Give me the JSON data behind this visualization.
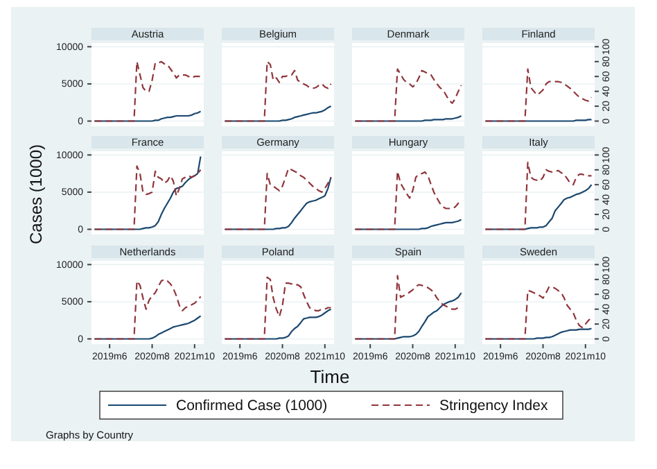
{
  "chart_data": [
    {
      "type": "line",
      "title": "Austria",
      "grid": "y",
      "tick_labels": "y",
      "x": [
        "2019-01",
        "2019-02",
        "2019-03",
        "2019-04",
        "2019-05",
        "2019-06",
        "2019-07",
        "2019-08",
        "2019-09",
        "2019-10",
        "2019-11",
        "2019-12",
        "2020-01",
        "2020-02",
        "2020-03",
        "2020-04",
        "2020-05",
        "2020-06",
        "2020-07",
        "2020-08",
        "2020-09",
        "2020-10",
        "2020-11",
        "2020-12",
        "2021-01",
        "2021-02",
        "2021-03",
        "2021-04",
        "2021-05",
        "2021-06",
        "2021-07",
        "2021-08",
        "2021-09",
        "2021-10",
        "2021-11",
        "2021-12"
      ],
      "xlim": [
        "2018-12",
        "2022-01"
      ],
      "ylim": [
        -700,
        10500
      ],
      "yticks": [
        0,
        5000,
        10000
      ],
      "y2lim": [
        -7,
        105
      ],
      "series": [
        {
          "color": "#1a476f",
          "line_style": "solid",
          "values": [
            0,
            0,
            0,
            0,
            0,
            0,
            0,
            0,
            0,
            0,
            0,
            0,
            0,
            0,
            0,
            0,
            0,
            0,
            0,
            0,
            100,
            100,
            300,
            400,
            500,
            500,
            600,
            700,
            700,
            700,
            700,
            700,
            800,
            1000,
            1100,
            1300
          ]
        },
        {
          "color": "#90353b",
          "line_style": "dashed",
          "axis": "y2",
          "values": [
            0,
            0,
            0,
            0,
            0,
            0,
            0,
            0,
            0,
            0,
            0,
            0,
            0,
            0,
            80,
            62,
            45,
            40,
            40,
            55,
            78,
            78,
            80,
            77,
            76,
            70,
            65,
            58,
            62,
            62,
            62,
            60,
            58,
            60,
            60,
            60
          ]
        }
      ]
    },
    {
      "type": "line",
      "title": "Belgium",
      "grid": "y",
      "tick_labels": false,
      "x": [
        "2019-01",
        "2019-02",
        "2019-03",
        "2019-04",
        "2019-05",
        "2019-06",
        "2019-07",
        "2019-08",
        "2019-09",
        "2019-10",
        "2019-11",
        "2019-12",
        "2020-01",
        "2020-02",
        "2020-03",
        "2020-04",
        "2020-05",
        "2020-06",
        "2020-07",
        "2020-08",
        "2020-09",
        "2020-10",
        "2020-11",
        "2020-12",
        "2021-01",
        "2021-02",
        "2021-03",
        "2021-04",
        "2021-05",
        "2021-06",
        "2021-07",
        "2021-08",
        "2021-09",
        "2021-10",
        "2021-11",
        "2021-12"
      ],
      "xlim": [
        "2018-12",
        "2022-01"
      ],
      "ylim": [
        -700,
        10500
      ],
      "y2lim": [
        -7,
        105
      ],
      "series": [
        {
          "color": "#1a476f",
          "line_style": "solid",
          "values": [
            0,
            0,
            0,
            0,
            0,
            0,
            0,
            0,
            0,
            0,
            0,
            0,
            0,
            0,
            0,
            0,
            0,
            0,
            0,
            100,
            100,
            200,
            300,
            500,
            600,
            700,
            800,
            900,
            1000,
            1100,
            1100,
            1200,
            1300,
            1500,
            1800,
            2000
          ]
        },
        {
          "color": "#90353b",
          "line_style": "dashed",
          "axis": "y2",
          "values": [
            0,
            0,
            0,
            0,
            0,
            0,
            0,
            0,
            0,
            0,
            0,
            0,
            0,
            0,
            80,
            76,
            55,
            58,
            52,
            60,
            60,
            62,
            62,
            68,
            55,
            52,
            50,
            48,
            45,
            44,
            45,
            48,
            50,
            46,
            44,
            50
          ]
        }
      ]
    },
    {
      "type": "line",
      "title": "Denmark",
      "grid": "y",
      "tick_labels": false,
      "x": [
        "2019-01",
        "2019-02",
        "2019-03",
        "2019-04",
        "2019-05",
        "2019-06",
        "2019-07",
        "2019-08",
        "2019-09",
        "2019-10",
        "2019-11",
        "2019-12",
        "2020-01",
        "2020-02",
        "2020-03",
        "2020-04",
        "2020-05",
        "2020-06",
        "2020-07",
        "2020-08",
        "2020-09",
        "2020-10",
        "2020-11",
        "2020-12",
        "2021-01",
        "2021-02",
        "2021-03",
        "2021-04",
        "2021-05",
        "2021-06",
        "2021-07",
        "2021-08",
        "2021-09",
        "2021-10",
        "2021-11",
        "2021-12"
      ],
      "xlim": [
        "2018-12",
        "2022-01"
      ],
      "ylim": [
        -700,
        10500
      ],
      "y2lim": [
        -7,
        105
      ],
      "series": [
        {
          "color": "#1a476f",
          "line_style": "solid",
          "values": [
            0,
            0,
            0,
            0,
            0,
            0,
            0,
            0,
            0,
            0,
            0,
            0,
            0,
            0,
            0,
            0,
            0,
            0,
            0,
            0,
            0,
            0,
            0,
            100,
            100,
            100,
            200,
            200,
            200,
            200,
            300,
            300,
            300,
            400,
            500,
            700
          ]
        },
        {
          "color": "#90353b",
          "line_style": "dashed",
          "axis": "y2",
          "values": [
            0,
            0,
            0,
            0,
            0,
            0,
            0,
            0,
            0,
            0,
            0,
            0,
            0,
            0,
            70,
            63,
            56,
            52,
            50,
            46,
            50,
            58,
            68,
            66,
            64,
            62,
            56,
            50,
            45,
            42,
            35,
            28,
            24,
            30,
            40,
            48
          ]
        }
      ]
    },
    {
      "type": "line",
      "title": "Finland",
      "grid": "y",
      "tick_labels": "y2",
      "x": [
        "2019-01",
        "2019-02",
        "2019-03",
        "2019-04",
        "2019-05",
        "2019-06",
        "2019-07",
        "2019-08",
        "2019-09",
        "2019-10",
        "2019-11",
        "2019-12",
        "2020-01",
        "2020-02",
        "2020-03",
        "2020-04",
        "2020-05",
        "2020-06",
        "2020-07",
        "2020-08",
        "2020-09",
        "2020-10",
        "2020-11",
        "2020-12",
        "2021-01",
        "2021-02",
        "2021-03",
        "2021-04",
        "2021-05",
        "2021-06",
        "2021-07",
        "2021-08",
        "2021-09",
        "2021-10",
        "2021-11",
        "2021-12"
      ],
      "xlim": [
        "2018-12",
        "2022-01"
      ],
      "ylim": [
        -700,
        10500
      ],
      "y2lim": [
        -7,
        105
      ],
      "y2ticks": [
        0,
        20,
        40,
        60,
        80,
        100
      ],
      "series": [
        {
          "color": "#1a476f",
          "line_style": "solid",
          "values": [
            0,
            0,
            0,
            0,
            0,
            0,
            0,
            0,
            0,
            0,
            0,
            0,
            0,
            0,
            0,
            0,
            0,
            0,
            0,
            0,
            0,
            0,
            0,
            0,
            0,
            0,
            0,
            0,
            0,
            0,
            100,
            100,
            100,
            100,
            200,
            200
          ]
        },
        {
          "color": "#90353b",
          "line_style": "dashed",
          "axis": "y2",
          "values": [
            0,
            0,
            0,
            0,
            0,
            0,
            0,
            0,
            0,
            0,
            0,
            0,
            0,
            0,
            70,
            45,
            40,
            35,
            38,
            42,
            50,
            53,
            53,
            53,
            53,
            52,
            50,
            47,
            44,
            40,
            36,
            32,
            30,
            28,
            27,
            32
          ]
        }
      ]
    },
    {
      "type": "line",
      "title": "France",
      "ylabel": "Cases (1000)",
      "grid": "y",
      "tick_labels": "y",
      "x": [
        "2019-01",
        "2019-02",
        "2019-03",
        "2019-04",
        "2019-05",
        "2019-06",
        "2019-07",
        "2019-08",
        "2019-09",
        "2019-10",
        "2019-11",
        "2019-12",
        "2020-01",
        "2020-02",
        "2020-03",
        "2020-04",
        "2020-05",
        "2020-06",
        "2020-07",
        "2020-08",
        "2020-09",
        "2020-10",
        "2020-11",
        "2020-12",
        "2021-01",
        "2021-02",
        "2021-03",
        "2021-04",
        "2021-05",
        "2021-06",
        "2021-07",
        "2021-08",
        "2021-09",
        "2021-10",
        "2021-11",
        "2021-12"
      ],
      "xlim": [
        "2018-12",
        "2022-01"
      ],
      "ylim": [
        -700,
        10500
      ],
      "yticks": [
        0,
        5000,
        10000
      ],
      "y2lim": [
        -7,
        105
      ],
      "series": [
        {
          "color": "#1a476f",
          "line_style": "solid",
          "values": [
            0,
            0,
            0,
            0,
            0,
            0,
            0,
            0,
            0,
            0,
            0,
            0,
            0,
            0,
            0,
            0,
            100,
            200,
            200,
            300,
            500,
            1000,
            2000,
            2800,
            3500,
            4200,
            5000,
            5500,
            5600,
            5800,
            6300,
            6700,
            7000,
            7200,
            7500,
            9800
          ]
        },
        {
          "color": "#90353b",
          "line_style": "dashed",
          "axis": "y2",
          "values": [
            0,
            0,
            0,
            0,
            0,
            0,
            0,
            0,
            0,
            0,
            0,
            0,
            0,
            0,
            85,
            75,
            50,
            47,
            48,
            50,
            78,
            70,
            68,
            62,
            65,
            72,
            65,
            45,
            55,
            68,
            70,
            72,
            70,
            72,
            75,
            80
          ]
        }
      ]
    },
    {
      "type": "line",
      "title": "Germany",
      "grid": "y",
      "tick_labels": false,
      "x": [
        "2019-01",
        "2019-02",
        "2019-03",
        "2019-04",
        "2019-05",
        "2019-06",
        "2019-07",
        "2019-08",
        "2019-09",
        "2019-10",
        "2019-11",
        "2019-12",
        "2020-01",
        "2020-02",
        "2020-03",
        "2020-04",
        "2020-05",
        "2020-06",
        "2020-07",
        "2020-08",
        "2020-09",
        "2020-10",
        "2020-11",
        "2020-12",
        "2021-01",
        "2021-02",
        "2021-03",
        "2021-04",
        "2021-05",
        "2021-06",
        "2021-07",
        "2021-08",
        "2021-09",
        "2021-10",
        "2021-11",
        "2021-12"
      ],
      "xlim": [
        "2018-12",
        "2022-01"
      ],
      "ylim": [
        -700,
        10500
      ],
      "y2lim": [
        -7,
        105
      ],
      "series": [
        {
          "color": "#1a476f",
          "line_style": "solid",
          "values": [
            0,
            0,
            0,
            0,
            0,
            0,
            0,
            0,
            0,
            0,
            0,
            0,
            0,
            0,
            0,
            0,
            0,
            100,
            100,
            200,
            200,
            400,
            900,
            1500,
            2000,
            2500,
            3000,
            3500,
            3700,
            3800,
            3900,
            4100,
            4300,
            4500,
            5500,
            7000
          ]
        },
        {
          "color": "#90353b",
          "line_style": "dashed",
          "axis": "y2",
          "values": [
            0,
            0,
            0,
            0,
            0,
            0,
            0,
            0,
            0,
            0,
            0,
            0,
            0,
            0,
            75,
            60,
            58,
            55,
            52,
            58,
            70,
            82,
            80,
            78,
            76,
            72,
            70,
            66,
            62,
            58,
            55,
            52,
            50,
            55,
            62,
            70
          ]
        }
      ]
    },
    {
      "type": "line",
      "title": "Hungary",
      "grid": "y",
      "tick_labels": false,
      "x": [
        "2019-01",
        "2019-02",
        "2019-03",
        "2019-04",
        "2019-05",
        "2019-06",
        "2019-07",
        "2019-08",
        "2019-09",
        "2019-10",
        "2019-11",
        "2019-12",
        "2020-01",
        "2020-02",
        "2020-03",
        "2020-04",
        "2020-05",
        "2020-06",
        "2020-07",
        "2020-08",
        "2020-09",
        "2020-10",
        "2020-11",
        "2020-12",
        "2021-01",
        "2021-02",
        "2021-03",
        "2021-04",
        "2021-05",
        "2021-06",
        "2021-07",
        "2021-08",
        "2021-09",
        "2021-10",
        "2021-11",
        "2021-12"
      ],
      "xlim": [
        "2018-12",
        "2022-01"
      ],
      "ylim": [
        -700,
        10500
      ],
      "y2lim": [
        -7,
        105
      ],
      "series": [
        {
          "color": "#1a476f",
          "line_style": "solid",
          "values": [
            0,
            0,
            0,
            0,
            0,
            0,
            0,
            0,
            0,
            0,
            0,
            0,
            0,
            0,
            0,
            0,
            0,
            0,
            0,
            0,
            0,
            0,
            100,
            100,
            200,
            400,
            500,
            600,
            700,
            800,
            900,
            900,
            900,
            1000,
            1100,
            1300
          ]
        },
        {
          "color": "#90353b",
          "line_style": "dashed",
          "axis": "y2",
          "values": [
            0,
            0,
            0,
            0,
            0,
            0,
            0,
            0,
            0,
            0,
            0,
            0,
            0,
            0,
            78,
            62,
            55,
            48,
            42,
            52,
            70,
            74,
            75,
            77,
            72,
            60,
            50,
            42,
            35,
            30,
            28,
            28,
            28,
            30,
            35,
            40
          ]
        }
      ]
    },
    {
      "type": "line",
      "title": "Italy",
      "grid": "y",
      "tick_labels": "y2",
      "x": [
        "2019-01",
        "2019-02",
        "2019-03",
        "2019-04",
        "2019-05",
        "2019-06",
        "2019-07",
        "2019-08",
        "2019-09",
        "2019-10",
        "2019-11",
        "2019-12",
        "2020-01",
        "2020-02",
        "2020-03",
        "2020-04",
        "2020-05",
        "2020-06",
        "2020-07",
        "2020-08",
        "2020-09",
        "2020-10",
        "2020-11",
        "2020-12",
        "2021-01",
        "2021-02",
        "2021-03",
        "2021-04",
        "2021-05",
        "2021-06",
        "2021-07",
        "2021-08",
        "2021-09",
        "2021-10",
        "2021-11",
        "2021-12"
      ],
      "xlim": [
        "2018-12",
        "2022-01"
      ],
      "ylim": [
        -700,
        10500
      ],
      "y2lim": [
        -7,
        105
      ],
      "y2ticks": [
        0,
        20,
        40,
        60,
        80,
        100
      ],
      "series": [
        {
          "color": "#1a476f",
          "line_style": "solid",
          "values": [
            0,
            0,
            0,
            0,
            0,
            0,
            0,
            0,
            0,
            0,
            0,
            0,
            0,
            0,
            100,
            200,
            200,
            200,
            300,
            300,
            500,
            1000,
            1500,
            2500,
            3000,
            3500,
            4000,
            4200,
            4300,
            4500,
            4700,
            4800,
            5000,
            5200,
            5500,
            6000
          ]
        },
        {
          "color": "#90353b",
          "line_style": "dashed",
          "axis": "y2",
          "values": [
            0,
            0,
            0,
            0,
            0,
            0,
            0,
            0,
            0,
            0,
            0,
            0,
            0,
            0,
            90,
            70,
            67,
            66,
            65,
            70,
            80,
            78,
            77,
            78,
            79,
            76,
            74,
            68,
            62,
            60,
            70,
            74,
            74,
            72,
            72,
            72
          ]
        }
      ]
    },
    {
      "type": "line",
      "title": "Netherlands",
      "annotations": [
        "Graphs by Country"
      ],
      "grid": "y",
      "tick_labels": "xy",
      "x": [
        "2019-01",
        "2019-02",
        "2019-03",
        "2019-04",
        "2019-05",
        "2019-06",
        "2019-07",
        "2019-08",
        "2019-09",
        "2019-10",
        "2019-11",
        "2019-12",
        "2020-01",
        "2020-02",
        "2020-03",
        "2020-04",
        "2020-05",
        "2020-06",
        "2020-07",
        "2020-08",
        "2020-09",
        "2020-10",
        "2020-11",
        "2020-12",
        "2021-01",
        "2021-02",
        "2021-03",
        "2021-04",
        "2021-05",
        "2021-06",
        "2021-07",
        "2021-08",
        "2021-09",
        "2021-10",
        "2021-11",
        "2021-12"
      ],
      "xlim": [
        "2018-12",
        "2022-01"
      ],
      "xticks": [
        {
          "value": "2019-06",
          "label": "2019m6"
        },
        {
          "value": "2020-08",
          "label": "2020m8"
        },
        {
          "value": "2021-10",
          "label": "2021m10"
        }
      ],
      "ylim": [
        -700,
        10500
      ],
      "yticks": [
        0,
        5000,
        10000
      ],
      "y2lim": [
        -7,
        105
      ],
      "series": [
        {
          "color": "#1a476f",
          "line_style": "solid",
          "values": [
            0,
            0,
            0,
            0,
            0,
            0,
            0,
            0,
            0,
            0,
            0,
            0,
            0,
            0,
            0,
            0,
            0,
            0,
            0,
            100,
            300,
            600,
            800,
            1000,
            1200,
            1400,
            1600,
            1700,
            1800,
            1900,
            2000,
            2100,
            2300,
            2500,
            2800,
            3100
          ]
        },
        {
          "color": "#90353b",
          "line_style": "dashed",
          "axis": "y2",
          "values": [
            0,
            0,
            0,
            0,
            0,
            0,
            0,
            0,
            0,
            0,
            0,
            0,
            0,
            0,
            78,
            72,
            55,
            40,
            52,
            58,
            62,
            70,
            78,
            80,
            78,
            74,
            68,
            58,
            45,
            38,
            42,
            44,
            46,
            48,
            52,
            57
          ]
        }
      ]
    },
    {
      "type": "line",
      "title": "Poland",
      "legend": "bottom",
      "grid": "y",
      "tick_labels": "x",
      "x": [
        "2019-01",
        "2019-02",
        "2019-03",
        "2019-04",
        "2019-05",
        "2019-06",
        "2019-07",
        "2019-08",
        "2019-09",
        "2019-10",
        "2019-11",
        "2019-12",
        "2020-01",
        "2020-02",
        "2020-03",
        "2020-04",
        "2020-05",
        "2020-06",
        "2020-07",
        "2020-08",
        "2020-09",
        "2020-10",
        "2020-11",
        "2020-12",
        "2021-01",
        "2021-02",
        "2021-03",
        "2021-04",
        "2021-05",
        "2021-06",
        "2021-07",
        "2021-08",
        "2021-09",
        "2021-10",
        "2021-11",
        "2021-12"
      ],
      "xlim": [
        "2018-12",
        "2022-01"
      ],
      "xticks": [
        {
          "value": "2019-06",
          "label": "2019m6"
        },
        {
          "value": "2020-08",
          "label": "2020m8"
        },
        {
          "value": "2021-10",
          "label": "2021m10"
        }
      ],
      "ylim": [
        -700,
        10500
      ],
      "y2lim": [
        -7,
        105
      ],
      "series": [
        {
          "name": "Confirmed Case (1000)",
          "color": "#1a476f",
          "line_style": "solid",
          "values": [
            0,
            0,
            0,
            0,
            0,
            0,
            0,
            0,
            0,
            0,
            0,
            0,
            0,
            0,
            0,
            0,
            0,
            0,
            100,
            100,
            200,
            400,
            1000,
            1400,
            1700,
            2200,
            2700,
            2800,
            2900,
            2900,
            2900,
            3000,
            3200,
            3500,
            3800,
            4000
          ]
        },
        {
          "name": "Stringency Index",
          "color": "#90353b",
          "line_style": "dashed",
          "axis": "y2",
          "values": [
            0,
            0,
            0,
            0,
            0,
            0,
            0,
            0,
            0,
            0,
            0,
            0,
            0,
            0,
            83,
            80,
            55,
            40,
            30,
            45,
            75,
            75,
            74,
            72,
            73,
            70,
            60,
            50,
            42,
            40,
            38,
            38,
            40,
            40,
            42,
            42
          ]
        }
      ]
    },
    {
      "type": "line",
      "title": "Spain",
      "xlabel": "Time",
      "grid": "y",
      "tick_labels": "x",
      "x": [
        "2019-01",
        "2019-02",
        "2019-03",
        "2019-04",
        "2019-05",
        "2019-06",
        "2019-07",
        "2019-08",
        "2019-09",
        "2019-10",
        "2019-11",
        "2019-12",
        "2020-01",
        "2020-02",
        "2020-03",
        "2020-04",
        "2020-05",
        "2020-06",
        "2020-07",
        "2020-08",
        "2020-09",
        "2020-10",
        "2020-11",
        "2020-12",
        "2021-01",
        "2021-02",
        "2021-03",
        "2021-04",
        "2021-05",
        "2021-06",
        "2021-07",
        "2021-08",
        "2021-09",
        "2021-10",
        "2021-11",
        "2021-12"
      ],
      "xlim": [
        "2018-12",
        "2022-01"
      ],
      "xticks": [
        {
          "value": "2019-06",
          "label": "2019m6"
        },
        {
          "value": "2020-08",
          "label": "2020m8"
        },
        {
          "value": "2021-10",
          "label": "2021m10"
        }
      ],
      "ylim": [
        -700,
        10500
      ],
      "y2lim": [
        -7,
        105
      ],
      "series": [
        {
          "color": "#1a476f",
          "line_style": "solid",
          "values": [
            0,
            0,
            0,
            0,
            0,
            0,
            0,
            0,
            0,
            0,
            0,
            0,
            0,
            0,
            100,
            200,
            300,
            300,
            300,
            400,
            600,
            1000,
            1700,
            2300,
            3000,
            3300,
            3600,
            3800,
            4200,
            4600,
            4800,
            5000,
            5100,
            5300,
            5600,
            6200
          ]
        },
        {
          "color": "#90353b",
          "line_style": "dashed",
          "axis": "y2",
          "values": [
            0,
            0,
            0,
            0,
            0,
            0,
            0,
            0,
            0,
            0,
            0,
            0,
            0,
            0,
            85,
            56,
            58,
            60,
            63,
            66,
            70,
            73,
            72,
            70,
            69,
            66,
            62,
            55,
            50,
            46,
            44,
            42,
            40,
            40,
            42,
            43
          ]
        }
      ]
    },
    {
      "type": "line",
      "title": "Sweden",
      "grid": "y",
      "tick_labels": "xy2",
      "x": [
        "2019-01",
        "2019-02",
        "2019-03",
        "2019-04",
        "2019-05",
        "2019-06",
        "2019-07",
        "2019-08",
        "2019-09",
        "2019-10",
        "2019-11",
        "2019-12",
        "2020-01",
        "2020-02",
        "2020-03",
        "2020-04",
        "2020-05",
        "2020-06",
        "2020-07",
        "2020-08",
        "2020-09",
        "2020-10",
        "2020-11",
        "2020-12",
        "2021-01",
        "2021-02",
        "2021-03",
        "2021-04",
        "2021-05",
        "2021-06",
        "2021-07",
        "2021-08",
        "2021-09",
        "2021-10",
        "2021-11",
        "2021-12"
      ],
      "xlim": [
        "2018-12",
        "2022-01"
      ],
      "xticks": [
        {
          "value": "2019-06",
          "label": "2019m6"
        },
        {
          "value": "2020-08",
          "label": "2020m8"
        },
        {
          "value": "2021-10",
          "label": "2021m10"
        }
      ],
      "ylim": [
        -700,
        10500
      ],
      "y2lim": [
        -7,
        105
      ],
      "y2ticks": [
        0,
        20,
        40,
        60,
        80,
        100
      ],
      "series": [
        {
          "color": "#1a476f",
          "line_style": "solid",
          "values": [
            0,
            0,
            0,
            0,
            0,
            0,
            0,
            0,
            0,
            0,
            0,
            0,
            0,
            0,
            0,
            0,
            0,
            100,
            100,
            100,
            200,
            200,
            300,
            500,
            700,
            900,
            1000,
            1100,
            1200,
            1200,
            1200,
            1300,
            1300,
            1300,
            1300,
            1400
          ]
        },
        {
          "color": "#90353b",
          "line_style": "dashed",
          "axis": "y2",
          "values": [
            0,
            0,
            0,
            0,
            0,
            0,
            0,
            0,
            0,
            0,
            0,
            0,
            0,
            0,
            65,
            64,
            62,
            60,
            58,
            55,
            62,
            70,
            70,
            68,
            65,
            62,
            55,
            45,
            40,
            35,
            25,
            18,
            15,
            20,
            25,
            28
          ]
        }
      ]
    }
  ]
}
